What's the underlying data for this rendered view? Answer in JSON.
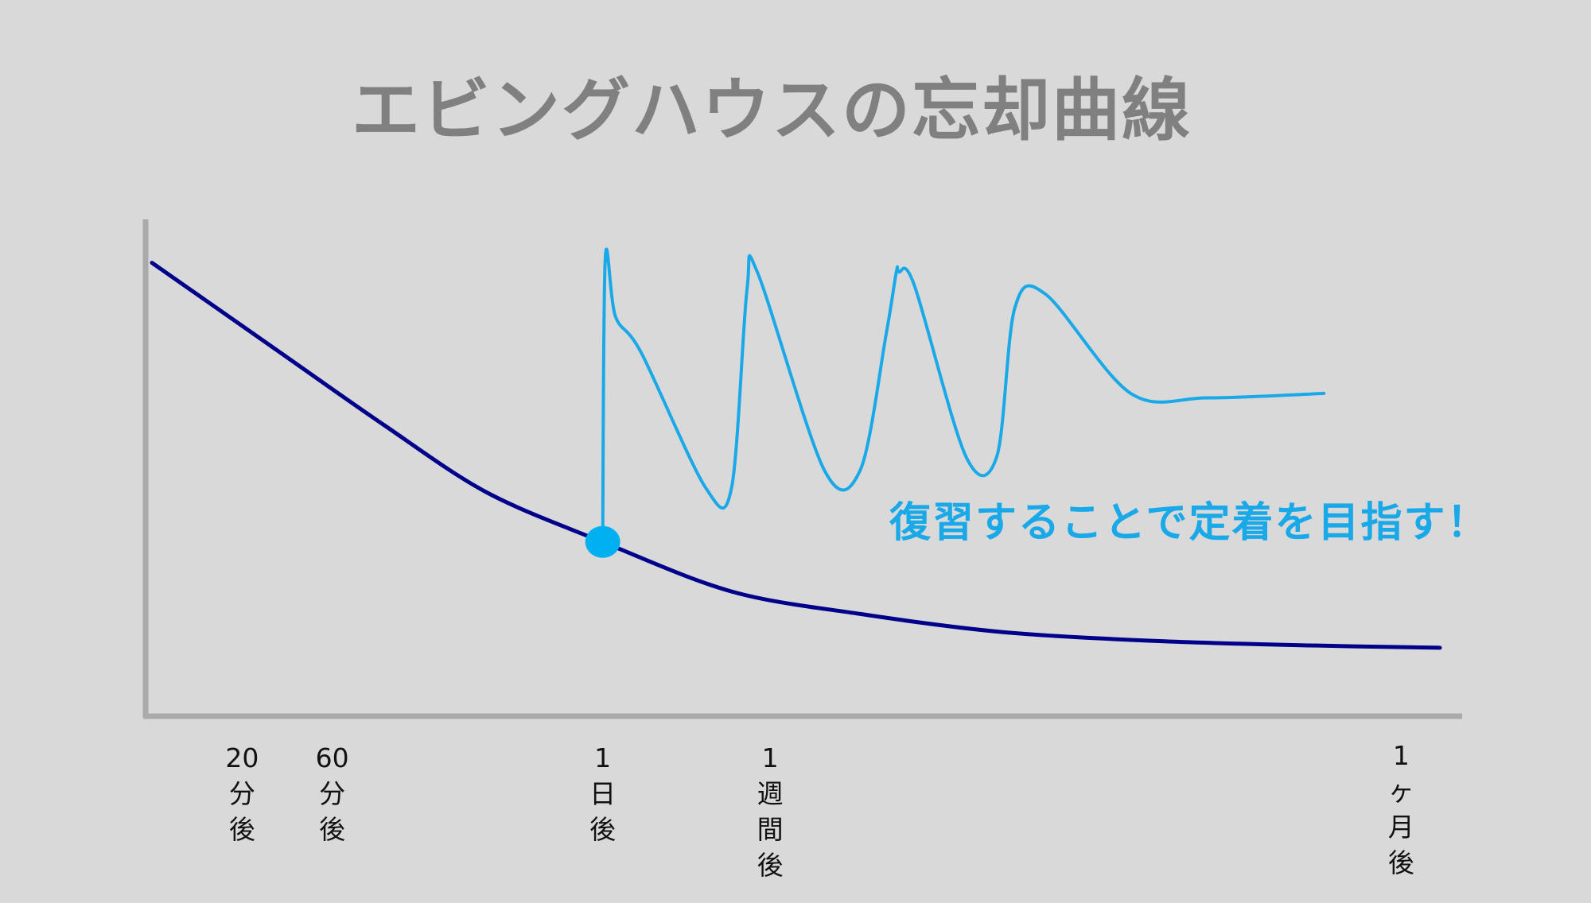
{
  "slide": {
    "title": "エビングハウスの忘却曲線",
    "annotation": "復習することで定着を目指す！"
  },
  "colors": {
    "background": "#d9d9d9",
    "title": "#808080",
    "axis": "#aaaaaa",
    "forgetting_curve": "#00008b",
    "review_curve": "#1aa9e8",
    "review_point": "#00b0f0"
  },
  "chart_data": {
    "type": "line",
    "title": "エビングハウスの忘却曲線",
    "xlabel": "",
    "ylabel": "",
    "tick_labels": [
      {
        "key": "20min",
        "label": "20\n分\n後"
      },
      {
        "key": "60min",
        "label": "60\n分\n後"
      },
      {
        "key": "1day",
        "label": "1\n日\n後"
      },
      {
        "key": "1week",
        "label": "1\n週\n間\n後"
      },
      {
        "key": "1month",
        "label": "1\nヶ\n月\n後"
      }
    ],
    "x_positions": {
      "20min": 0.07,
      "60min": 0.14,
      "1day": 0.35,
      "1week": 0.48,
      "1month": 0.97
    },
    "series": [
      {
        "key": "forgetting",
        "x": [
          0.0,
          0.04,
          0.1,
          0.18,
          0.26,
          0.35,
          0.45,
          0.55,
          0.66,
          0.78,
          0.9,
          1.0
        ],
        "y": [
          100,
          92,
          80,
          64,
          49,
          38,
          27,
          22,
          18,
          16,
          15,
          14.5
        ]
      },
      {
        "key": "review",
        "x": [
          0.35,
          0.352,
          0.36,
          0.38,
          0.43,
          0.45,
          0.462,
          0.47,
          0.522,
          0.55,
          0.57,
          0.578,
          0.58,
          0.592,
          0.632,
          0.656,
          0.67,
          0.694,
          0.76,
          0.82,
          0.91
        ],
        "y": [
          38,
          101,
          88,
          80,
          50,
          50,
          94,
          98,
          54,
          54,
          84,
          98,
          98,
          95,
          57,
          57,
          90,
          93,
          71,
          70,
          71
        ]
      }
    ],
    "marker": {
      "x": 0.35,
      "y": 38
    },
    "ylim": [
      0,
      110
    ],
    "grid": false,
    "legend": "none"
  }
}
